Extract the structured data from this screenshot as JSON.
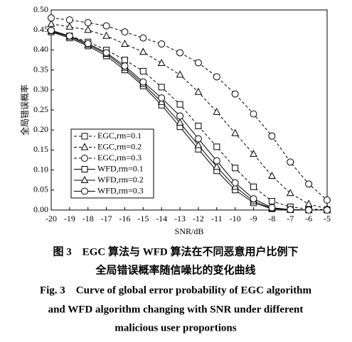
{
  "chart_data": {
    "type": "line",
    "x_label": "SNR/dB",
    "y_label": "全局错误概率",
    "x": [
      -20,
      -19,
      -18,
      -17,
      -16,
      -15,
      -14,
      -13,
      -12,
      -11,
      -10,
      -9,
      -8,
      -7,
      -6,
      -5
    ],
    "xlim": [
      -20,
      -5
    ],
    "xticks": [
      -20,
      -19,
      -18,
      -17,
      -16,
      -15,
      -14,
      -13,
      -12,
      -11,
      -10,
      -9,
      -8,
      -7,
      -6,
      -5
    ],
    "ylim": [
      0,
      0.5
    ],
    "yticks": [
      {
        "value": 0,
        "label": "0.00"
      },
      {
        "value": 0.05,
        "label": "0.05"
      },
      {
        "value": 0.1,
        "label": "0.10"
      },
      {
        "value": 0.15,
        "label": "0.15"
      },
      {
        "value": 0.2,
        "label": "0.20"
      },
      {
        "value": 0.25,
        "label": "0.25"
      },
      {
        "value": 0.3,
        "label": "0.30"
      },
      {
        "value": 0.35,
        "label": "0.35"
      },
      {
        "value": 0.4,
        "label": "0.40"
      },
      {
        "value": 0.45,
        "label": "0.45"
      },
      {
        "value": 0.5,
        "label": "0.50"
      }
    ],
    "legend_position": "lower left",
    "series": [
      {
        "name": "EGC,rm=0.1",
        "color": "#000000",
        "marker": "square",
        "dashed": true,
        "values": [
          0.447,
          0.435,
          0.42,
          0.4,
          0.375,
          0.347,
          0.307,
          0.264,
          0.21,
          0.158,
          0.105,
          0.058,
          0.022,
          0.008,
          0.002,
          0.001
        ]
      },
      {
        "name": "EGC,rm=0.2",
        "color": "#000000",
        "marker": "triangle",
        "dashed": true,
        "values": [
          0.465,
          0.458,
          0.45,
          0.435,
          0.415,
          0.395,
          0.367,
          0.338,
          0.295,
          0.245,
          0.192,
          0.14,
          0.085,
          0.042,
          0.015,
          0.003
        ]
      },
      {
        "name": "EGC,rm=0.3",
        "color": "#000000",
        "marker": "circle",
        "dashed": true,
        "values": [
          0.48,
          0.475,
          0.468,
          0.46,
          0.445,
          0.43,
          0.415,
          0.393,
          0.368,
          0.333,
          0.29,
          0.24,
          0.185,
          0.12,
          0.065,
          0.025
        ]
      },
      {
        "name": "WFD,rm=0.1",
        "color": "#000000",
        "marker": "square",
        "dashed": false,
        "values": [
          0.445,
          0.43,
          0.41,
          0.385,
          0.35,
          0.31,
          0.262,
          0.208,
          0.152,
          0.098,
          0.05,
          0.018,
          0.003,
          0.001,
          0,
          0
        ]
      },
      {
        "name": "WFD,rm=0.2",
        "color": "#000000",
        "marker": "triangle",
        "dashed": false,
        "values": [
          0.447,
          0.433,
          0.413,
          0.39,
          0.355,
          0.315,
          0.27,
          0.218,
          0.162,
          0.108,
          0.058,
          0.022,
          0.004,
          0.001,
          0,
          0
        ]
      },
      {
        "name": "WFD,rm=0.3",
        "color": "#000000",
        "marker": "circle",
        "dashed": false,
        "values": [
          0.449,
          0.435,
          0.416,
          0.393,
          0.36,
          0.32,
          0.28,
          0.235,
          0.178,
          0.123,
          0.068,
          0.028,
          0.006,
          0.001,
          0,
          0
        ]
      }
    ],
    "caption": [
      "图 3　EGC 算法与 WFD 算法在不同恶意用户比例下",
      "全局错误概率随信噪比的变化曲线",
      "Fig. 3　Curve of global error probability of EGC algorithm",
      "and WFD algorithm changing with SNR under different",
      "malicious user proportions"
    ]
  }
}
